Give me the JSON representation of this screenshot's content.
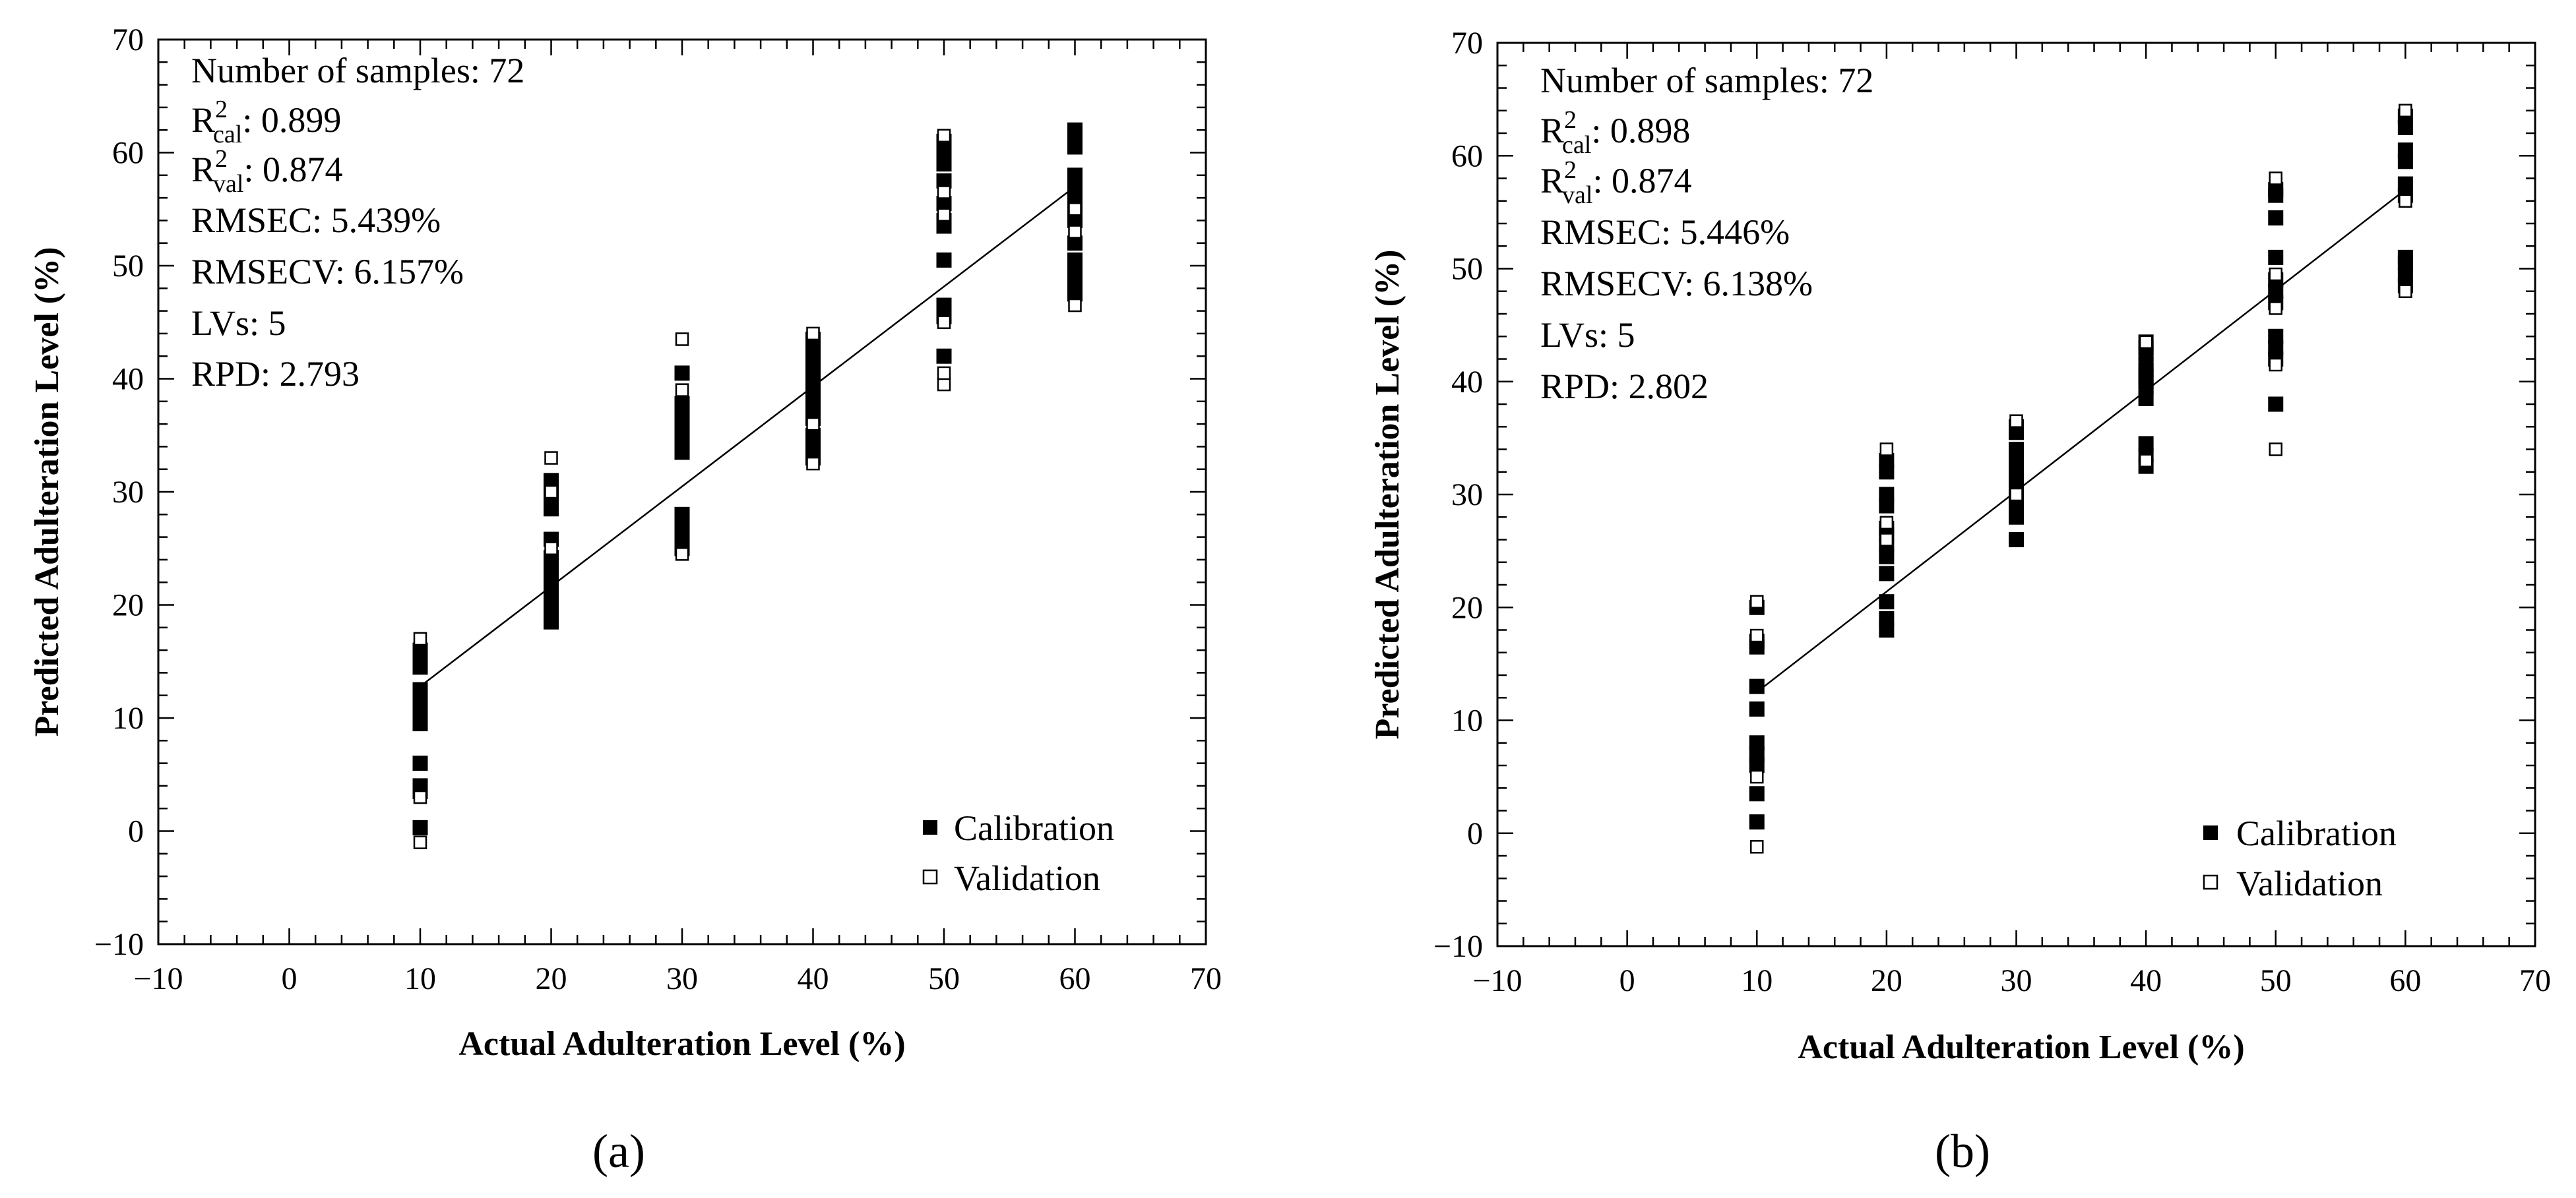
{
  "figure": {
    "captions": [
      "(a)",
      "(b)"
    ]
  },
  "chart_data": [
    {
      "type": "scatter",
      "panel": "a",
      "caption": "(a)",
      "xlabel": "Actual Adulteration Level (%)",
      "ylabel": "Predicted Adulteration Level (%)",
      "xlim": [
        -10,
        70
      ],
      "ylim": [
        -10,
        70
      ],
      "xticks": [
        -10,
        0,
        10,
        20,
        30,
        40,
        50,
        60,
        70
      ],
      "yticks": [
        -10,
        0,
        10,
        20,
        30,
        40,
        50,
        60,
        70
      ],
      "xtick_labels": [
        "−10",
        "0",
        "10",
        "20",
        "30",
        "40",
        "50",
        "60",
        "70"
      ],
      "ytick_labels": [
        "−10",
        "0",
        "10",
        "20",
        "30",
        "40",
        "50",
        "60",
        "70"
      ],
      "stats": {
        "samples_label": "Number of samples: 72",
        "r2cal_prefix": "R",
        "r2cal_sup": "2",
        "r2cal_sub": "cal",
        "r2cal_value": ":  0.899",
        "r2val_prefix": "R",
        "r2val_sup": "2",
        "r2val_sub": "val",
        "r2val_value": ":  0.874",
        "rmsec_label": "RMSEC: 5.439%",
        "rmsecv_label": "RMSECV: 6.157%",
        "lvs_label": "LVs: 5",
        "rpd_label": "RPD: 2.793"
      },
      "legend": {
        "position": "bottom-right",
        "calibration": "Calibration",
        "validation": "Validation"
      },
      "fit_line": {
        "x": [
          10,
          60
        ],
        "y": [
          12.8,
          57
        ]
      },
      "series": [
        {
          "name": "Calibration",
          "marker": "filled-square",
          "x": [
            10,
            10,
            10,
            10,
            10,
            10,
            10,
            10,
            10,
            10,
            10,
            20,
            20,
            20,
            20,
            20,
            20,
            20,
            20,
            20,
            20,
            20,
            20,
            20,
            20,
            30,
            30,
            30,
            30,
            30,
            30,
            30,
            30,
            30,
            30,
            30,
            30,
            30,
            30,
            40,
            40,
            40,
            40,
            40,
            40,
            40,
            40,
            40,
            40,
            40,
            40,
            40,
            40,
            50,
            50,
            50,
            50,
            50,
            50,
            50,
            50,
            50,
            50,
            50,
            60,
            60,
            60,
            60,
            60,
            60,
            60,
            60,
            60,
            60,
            60,
            60,
            60
          ],
          "y": [
            0.3,
            3.5,
            4,
            6,
            9.5,
            10.5,
            11.5,
            12.5,
            14.5,
            15.5,
            16,
            18.5,
            19.5,
            20.5,
            21.5,
            22.5,
            23.5,
            24.2,
            28.5,
            29.5,
            30.5,
            31,
            19,
            22,
            25.8,
            25,
            25.8,
            26.5,
            27.2,
            28,
            33.5,
            34.5,
            35.5,
            36.5,
            37.2,
            37.8,
            40.5,
            26,
            35,
            33,
            34,
            35,
            36.5,
            37.5,
            38.5,
            39.5,
            40.5,
            41.5,
            42.5,
            43,
            43.5,
            38,
            41,
            42,
            45.5,
            46.5,
            50.5,
            53.5,
            55.5,
            57.5,
            60,
            61,
            54,
            59,
            47.5,
            48.5,
            49.5,
            50.5,
            54,
            55,
            56,
            57,
            58,
            60.5,
            61.5,
            62,
            52
          ]
        },
        {
          "name": "Validation",
          "marker": "open-square",
          "x": [
            10,
            10,
            10,
            20,
            20,
            20,
            30,
            30,
            30,
            40,
            40,
            40,
            50,
            50,
            50,
            50,
            50,
            50,
            60,
            60,
            60
          ],
          "y": [
            -1,
            3,
            17,
            25,
            30,
            33,
            24.5,
            39,
            43.5,
            32.5,
            36,
            44,
            39.5,
            40.5,
            45,
            54.5,
            56.5,
            61.5,
            46.5,
            53,
            55
          ]
        }
      ]
    },
    {
      "type": "scatter",
      "panel": "b",
      "caption": "(b)",
      "xlabel": "Actual Adulteration Level (%)",
      "ylabel": "Predicted Adulteration Level (%)",
      "xlim": [
        -10,
        70
      ],
      "ylim": [
        -10,
        70
      ],
      "xticks": [
        -10,
        0,
        10,
        20,
        30,
        40,
        50,
        60,
        70
      ],
      "yticks": [
        -10,
        0,
        10,
        20,
        30,
        40,
        50,
        60,
        70
      ],
      "xtick_labels": [
        "−10",
        "0",
        "10",
        "20",
        "30",
        "40",
        "50",
        "60",
        "70"
      ],
      "ytick_labels": [
        "−10",
        "0",
        "10",
        "20",
        "30",
        "40",
        "50",
        "60",
        "70"
      ],
      "stats": {
        "samples_label": "Number of samples: 72",
        "r2cal_prefix": "R",
        "r2cal_sup": "2",
        "r2cal_sub": "cal",
        "r2cal_value": ":  0.898",
        "r2val_prefix": "R",
        "r2val_sup": "2",
        "r2val_sub": "val",
        "r2val_value": ":  0.874",
        "rmsec_label": "RMSEC: 5.446%",
        "rmsecv_label": "RMSECV: 6.138%",
        "lvs_label": "LVs: 5",
        "rpd_label": "RPD: 2.802"
      },
      "legend": {
        "position": "bottom-right",
        "calibration": "Calibration",
        "validation": "Validation"
      },
      "fit_line": {
        "x": [
          10,
          60
        ],
        "y": [
          12.5,
          57
        ]
      },
      "series": [
        {
          "name": "Calibration",
          "marker": "filled-square",
          "x": [
            10,
            10,
            10,
            10,
            10,
            10,
            10,
            10,
            10,
            10,
            20,
            20,
            20,
            20,
            20,
            20,
            20,
            20,
            20,
            20,
            20,
            20,
            30,
            30,
            30,
            30,
            30,
            30,
            30,
            30,
            30,
            30,
            40,
            40,
            40,
            40,
            40,
            40,
            40,
            40,
            40,
            40,
            40,
            40,
            50,
            50,
            50,
            50,
            50,
            50,
            50,
            50,
            50,
            50,
            50,
            60,
            60,
            60,
            60,
            60,
            60,
            60,
            60,
            60,
            60
          ],
          "y": [
            1,
            3.5,
            6,
            7,
            8,
            11,
            13,
            16.5,
            17,
            20,
            18,
            19,
            20.5,
            24.5,
            25.5,
            26.5,
            27,
            30,
            32,
            33,
            23,
            29,
            26,
            28,
            30,
            31,
            32,
            33,
            34,
            35.5,
            36,
            29,
            32.5,
            33.5,
            34.5,
            38.5,
            39.5,
            40.5,
            41.5,
            42.5,
            43,
            43.5,
            41,
            40,
            38,
            42,
            43,
            47,
            48,
            49,
            51,
            54.5,
            56.5,
            57,
            44,
            48.5,
            49.5,
            50.5,
            51,
            56.5,
            57.5,
            59.5,
            60.5,
            62.5,
            63.5
          ]
        },
        {
          "name": "Validation",
          "marker": "open-square",
          "x": [
            10,
            10,
            10,
            10,
            20,
            20,
            20,
            30,
            30,
            40,
            40,
            50,
            50,
            50,
            50,
            50,
            60,
            60,
            60
          ],
          "y": [
            -1.2,
            5,
            17.5,
            20.5,
            26,
            27.5,
            34,
            30,
            36.5,
            33,
            43.5,
            34,
            41.5,
            46.5,
            49.5,
            58,
            48,
            56,
            64
          ]
        }
      ]
    }
  ]
}
